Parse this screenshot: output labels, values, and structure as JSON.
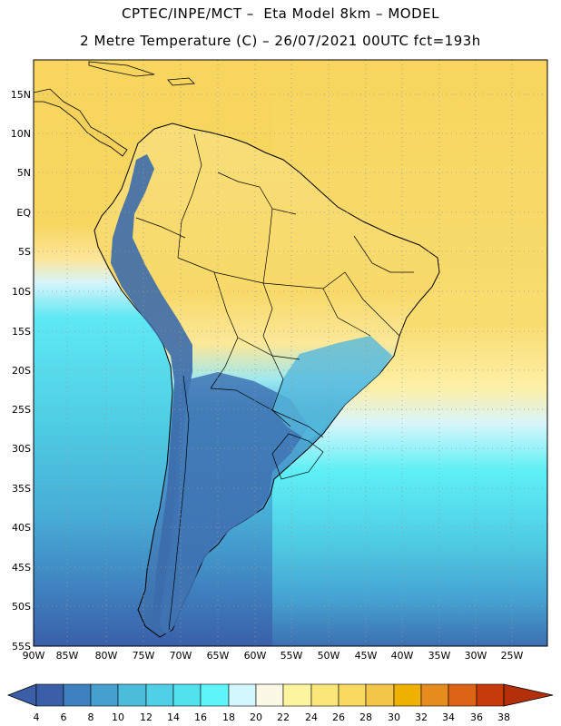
{
  "header": {
    "line1": "CPTEC/INPE/MCT –  Eta Model 8km – MODEL",
    "line2": "2 Metre Temperature (C) – 26/07/2021 00UTC fct=193h"
  },
  "axes": {
    "lat_labels": [
      "15N",
      "10N",
      "5N",
      "EQ",
      "5S",
      "10S",
      "15S",
      "20S",
      "25S",
      "30S",
      "35S",
      "40S",
      "45S",
      "50S",
      "55S"
    ],
    "lon_labels": [
      "90W",
      "85W",
      "80W",
      "75W",
      "70W",
      "65W",
      "60W",
      "55W",
      "50W",
      "45W",
      "40W",
      "35W",
      "30W",
      "25W"
    ]
  },
  "colorbar": {
    "ticks": [
      "4",
      "6",
      "8",
      "10",
      "12",
      "14",
      "16",
      "18",
      "20",
      "22",
      "24",
      "26",
      "28",
      "30",
      "32",
      "34",
      "36",
      "38"
    ],
    "colors": [
      "#3a5fa8",
      "#3f80bf",
      "#46a0cf",
      "#4bbcdc",
      "#50d0e6",
      "#52e2ee",
      "#5ff5f8",
      "#d2f8fd",
      "#fbf8e6",
      "#fdf4a0",
      "#fbe67a",
      "#f9d960",
      "#f3c548",
      "#f0b000",
      "#e68b1e",
      "#dd6416",
      "#c73a0c"
    ]
  },
  "palette": {
    "ocean_tropical": "#fad661",
    "ocean_cool": "#53d8ea",
    "land_warm": "#f8dc76",
    "land_cold": "#3b6ba8",
    "grid": "#9a9a9a"
  }
}
